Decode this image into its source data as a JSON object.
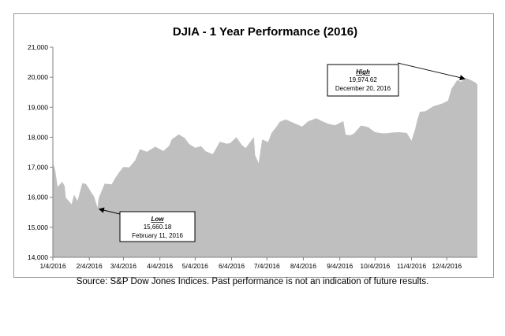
{
  "chart_data": {
    "type": "area",
    "title": "DJIA - 1 Year Performance (2016)",
    "xlabel": "",
    "ylabel": "",
    "ylim": [
      14000,
      21000
    ],
    "yticks": [
      "14,000",
      "15,000",
      "16,000",
      "17,000",
      "18,000",
      "19,000",
      "20,000",
      "21,000"
    ],
    "xticks": [
      "1/4/2016",
      "2/4/2016",
      "3/4/2016",
      "4/4/2016",
      "5/4/2016",
      "6/4/2016",
      "7/4/2016",
      "8/4/2016",
      "9/4/2016",
      "10/4/2016",
      "11/4/2016",
      "12/4/2016"
    ],
    "grid": false,
    "fill_color": "#bfbfbf",
    "series": [
      {
        "values": [
          [
            "2016-01-04",
            17148
          ],
          [
            "2016-01-06",
            16906
          ],
          [
            "2016-01-08",
            16346
          ],
          [
            "2016-01-12",
            16516
          ],
          [
            "2016-01-14",
            16379
          ],
          [
            "2016-01-15",
            15988
          ],
          [
            "2016-01-20",
            15766
          ],
          [
            "2016-01-22",
            16093
          ],
          [
            "2016-01-25",
            15885
          ],
          [
            "2016-01-29",
            16466
          ],
          [
            "2016-02-01",
            16449
          ],
          [
            "2016-02-03",
            16336
          ],
          [
            "2016-02-05",
            16205
          ],
          [
            "2016-02-08",
            16027
          ],
          [
            "2016-02-11",
            15660
          ],
          [
            "2016-02-12",
            15974
          ],
          [
            "2016-02-17",
            16453
          ],
          [
            "2016-02-23",
            16431
          ],
          [
            "2016-02-26",
            16640
          ],
          [
            "2016-03-01",
            16865
          ],
          [
            "2016-03-04",
            17006
          ],
          [
            "2016-03-09",
            17000
          ],
          [
            "2016-03-14",
            17230
          ],
          [
            "2016-03-18",
            17602
          ],
          [
            "2016-03-24",
            17516
          ],
          [
            "2016-03-31",
            17685
          ],
          [
            "2016-04-07",
            17542
          ],
          [
            "2016-04-12",
            17721
          ],
          [
            "2016-04-14",
            17926
          ],
          [
            "2016-04-20",
            18096
          ],
          [
            "2016-04-25",
            17977
          ],
          [
            "2016-04-29",
            17773
          ],
          [
            "2016-05-04",
            17651
          ],
          [
            "2016-05-09",
            17705
          ],
          [
            "2016-05-13",
            17535
          ],
          [
            "2016-05-19",
            17435
          ],
          [
            "2016-05-25",
            17851
          ],
          [
            "2016-05-31",
            17787
          ],
          [
            "2016-06-03",
            17807
          ],
          [
            "2016-06-08",
            18005
          ],
          [
            "2016-06-13",
            17732
          ],
          [
            "2016-06-16",
            17641
          ],
          [
            "2016-06-23",
            18011
          ],
          [
            "2016-06-24",
            17400
          ],
          [
            "2016-06-27",
            17140
          ],
          [
            "2016-06-30",
            17930
          ],
          [
            "2016-07-05",
            17841
          ],
          [
            "2016-07-08",
            18146
          ],
          [
            "2016-07-12",
            18347
          ],
          [
            "2016-07-15",
            18516
          ],
          [
            "2016-07-20",
            18595
          ],
          [
            "2016-07-27",
            18473
          ],
          [
            "2016-08-03",
            18355
          ],
          [
            "2016-08-08",
            18529
          ],
          [
            "2016-08-15",
            18636
          ],
          [
            "2016-08-19",
            18552
          ],
          [
            "2016-08-25",
            18448
          ],
          [
            "2016-08-31",
            18400
          ],
          [
            "2016-09-07",
            18538
          ],
          [
            "2016-09-09",
            18085
          ],
          [
            "2016-09-13",
            18066
          ],
          [
            "2016-09-16",
            18123
          ],
          [
            "2016-09-22",
            18392
          ],
          [
            "2016-09-28",
            18339
          ],
          [
            "2016-10-04",
            18168
          ],
          [
            "2016-10-11",
            18129
          ],
          [
            "2016-10-14",
            18138
          ],
          [
            "2016-10-20",
            18162
          ],
          [
            "2016-10-25",
            18169
          ],
          [
            "2016-10-31",
            18142
          ],
          [
            "2016-11-04",
            17888
          ],
          [
            "2016-11-07",
            18259
          ],
          [
            "2016-11-09",
            18589
          ],
          [
            "2016-11-11",
            18847
          ],
          [
            "2016-11-16",
            18868
          ],
          [
            "2016-11-22",
            19023
          ],
          [
            "2016-11-30",
            19124
          ],
          [
            "2016-12-05",
            19216
          ],
          [
            "2016-12-08",
            19615
          ],
          [
            "2016-12-13",
            19911
          ],
          [
            "2016-12-16",
            19843
          ],
          [
            "2016-12-20",
            19974.62
          ],
          [
            "2016-12-23",
            19933
          ],
          [
            "2016-12-28",
            19833
          ],
          [
            "2016-12-30",
            19762
          ]
        ]
      }
    ],
    "annotations": [
      {
        "name": "low",
        "heading": "Low",
        "value": "15,660.18",
        "date_text": "February 11, 2016",
        "x": "2016-02-11",
        "y": 15660.18
      },
      {
        "name": "high",
        "heading": "High",
        "value": "19,974.62",
        "date_text": "December 20, 2016",
        "x": "2016-12-20",
        "y": 19974.62
      }
    ]
  },
  "source_note": "Source: S&P Dow Jones Indices. Past performance is not an indication of future results."
}
